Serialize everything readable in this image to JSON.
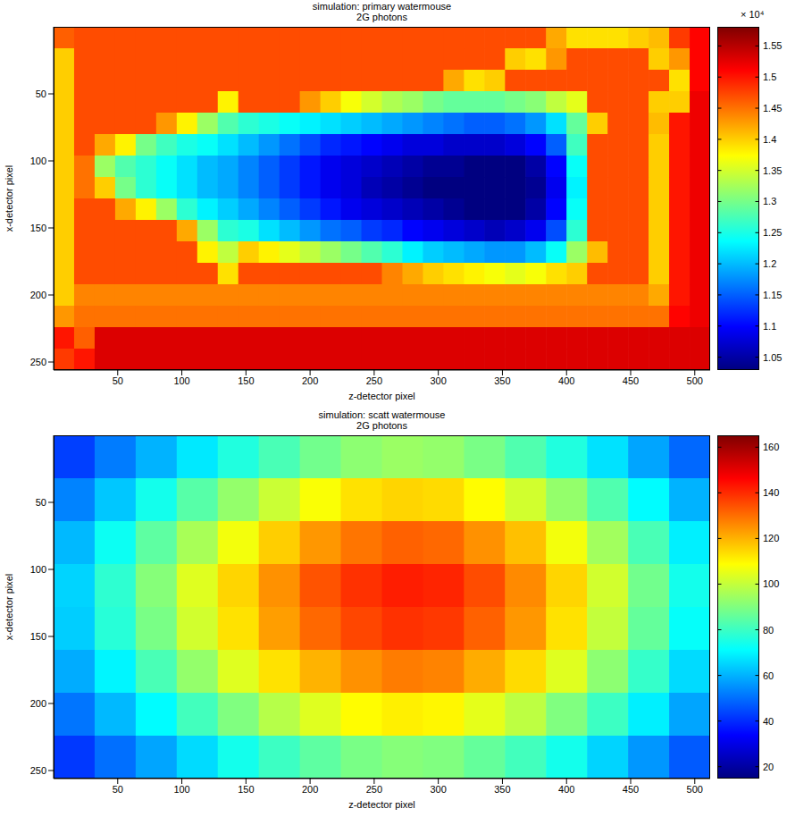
{
  "chart_data": [
    {
      "type": "heatmap",
      "title": "simulation: primary watermouse",
      "subtitle": "2G photons",
      "x_label": "z-detector pixel",
      "y_label": "x-detector pixel",
      "xlim": [
        0,
        512
      ],
      "xticks": [
        50,
        100,
        150,
        200,
        250,
        300,
        350,
        400,
        450,
        500
      ],
      "ylim": [
        0,
        256
      ],
      "yticks": [
        50,
        100,
        150,
        200,
        250
      ],
      "x": [
        8,
        24,
        40,
        56,
        72,
        88,
        104,
        120,
        136,
        152,
        168,
        184,
        200,
        216,
        232,
        248,
        264,
        280,
        296,
        312,
        328,
        344,
        360,
        376,
        392,
        408,
        424,
        440,
        456,
        472,
        488,
        504
      ],
      "y": [
        8,
        24,
        40,
        56,
        72,
        88,
        104,
        120,
        136,
        152,
        168,
        184,
        200,
        216,
        232,
        248
      ],
      "cells": [
        [
          14600,
          14700,
          14700,
          14700,
          14700,
          14700,
          14700,
          14700,
          14700,
          14700,
          14700,
          14700,
          14700,
          14700,
          14700,
          14700,
          14700,
          14700,
          14700,
          14700,
          14700,
          14700,
          14700,
          14700,
          14200,
          13900,
          13900,
          13900,
          14000,
          14100,
          14800,
          15100
        ],
        [
          14000,
          14700,
          14700,
          14700,
          14700,
          14700,
          14700,
          14700,
          14700,
          14700,
          14700,
          14700,
          14700,
          14700,
          14700,
          14700,
          14700,
          14700,
          14700,
          14700,
          14700,
          14700,
          14000,
          13900,
          14300,
          14700,
          14700,
          14700,
          14700,
          14000,
          14300,
          15100
        ],
        [
          14000,
          14700,
          14700,
          14700,
          14700,
          14700,
          14700,
          14700,
          14700,
          14700,
          14700,
          14700,
          14700,
          14700,
          14700,
          14700,
          14700,
          14700,
          14700,
          14200,
          13900,
          14000,
          14700,
          14700,
          14700,
          14700,
          14700,
          14700,
          14700,
          14700,
          13900,
          15100
        ],
        [
          14000,
          14700,
          14700,
          14700,
          14700,
          14700,
          14700,
          14700,
          13800,
          14700,
          14700,
          14700,
          14300,
          14000,
          13700,
          13500,
          13300,
          13200,
          13000,
          12900,
          12900,
          12900,
          13000,
          13100,
          13400,
          13600,
          14700,
          14700,
          14700,
          14000,
          14000,
          15200
        ],
        [
          14000,
          14700,
          14700,
          14700,
          14700,
          14300,
          13800,
          13200,
          12800,
          12600,
          12500,
          12400,
          12300,
          12200,
          12100,
          12000,
          11900,
          11800,
          11700,
          11600,
          11500,
          11500,
          11600,
          11800,
          12200,
          12900,
          14000,
          14700,
          14700,
          14100,
          15000,
          15200
        ],
        [
          14000,
          14700,
          14200,
          13800,
          13000,
          12700,
          12500,
          12400,
          12200,
          12000,
          11800,
          11600,
          11400,
          11200,
          11100,
          11000,
          10900,
          10800,
          10800,
          10700,
          10700,
          10700,
          10800,
          11000,
          11500,
          12700,
          14700,
          14700,
          14700,
          14000,
          15000,
          15200
        ],
        [
          14000,
          14500,
          13200,
          12800,
          12600,
          12400,
          12200,
          12000,
          11900,
          11700,
          11500,
          11300,
          11100,
          10900,
          10800,
          10700,
          10600,
          10500,
          10400,
          10400,
          10300,
          10300,
          10300,
          10500,
          11000,
          12400,
          14700,
          14700,
          14700,
          14000,
          15000,
          15200
        ],
        [
          14000,
          14500,
          14000,
          13000,
          12600,
          12400,
          12200,
          12000,
          11900,
          11700,
          11500,
          11300,
          11100,
          10900,
          10800,
          10600,
          10500,
          10400,
          10300,
          10300,
          10300,
          10300,
          10300,
          10400,
          10900,
          12300,
          14700,
          14700,
          14700,
          14000,
          15000,
          15200
        ],
        [
          14000,
          14700,
          14700,
          14200,
          13800,
          13200,
          12600,
          12300,
          12100,
          11900,
          11700,
          11500,
          11300,
          11100,
          10900,
          10800,
          10700,
          10600,
          10500,
          10400,
          10300,
          10300,
          10300,
          10500,
          11000,
          12400,
          14700,
          14700,
          14700,
          14000,
          15000,
          15200
        ],
        [
          14000,
          14700,
          14700,
          14700,
          14700,
          14700,
          14200,
          13200,
          12600,
          12500,
          12200,
          12000,
          11800,
          11600,
          11500,
          11300,
          11200,
          11000,
          10900,
          10800,
          10700,
          10600,
          10700,
          10900,
          11400,
          12600,
          14700,
          14700,
          14700,
          14000,
          15000,
          15200
        ],
        [
          14000,
          14700,
          14700,
          14700,
          14700,
          14700,
          14700,
          13800,
          13400,
          14000,
          13800,
          13600,
          13400,
          13200,
          13000,
          12800,
          12600,
          12300,
          12100,
          12000,
          11900,
          11800,
          11800,
          12000,
          12400,
          13200,
          14100,
          14700,
          14700,
          14000,
          15000,
          15200
        ],
        [
          14000,
          14700,
          14700,
          14700,
          14700,
          14700,
          14700,
          14700,
          13900,
          14700,
          14700,
          14700,
          14700,
          14700,
          14700,
          14700,
          14400,
          14200,
          14000,
          13900,
          13800,
          13700,
          13600,
          13700,
          13900,
          14000,
          14700,
          14700,
          14700,
          14000,
          15000,
          15200
        ],
        [
          14000,
          14400,
          14400,
          14400,
          14400,
          14400,
          14400,
          14400,
          14400,
          14400,
          14400,
          14400,
          14400,
          14400,
          14400,
          14400,
          14400,
          14400,
          14400,
          14400,
          14400,
          14400,
          14400,
          14400,
          14400,
          14400,
          14400,
          14400,
          14400,
          14200,
          15000,
          15200
        ],
        [
          14300,
          14500,
          14500,
          14500,
          14500,
          14500,
          14500,
          14500,
          14500,
          14500,
          14500,
          14500,
          14500,
          14500,
          14500,
          14500,
          14500,
          14500,
          14500,
          14500,
          14500,
          14500,
          14500,
          14500,
          14500,
          14500,
          14500,
          14500,
          14500,
          14500,
          15100,
          15200
        ],
        [
          15000,
          14600,
          15300,
          15300,
          15300,
          15300,
          15300,
          15300,
          15300,
          15300,
          15300,
          15300,
          15300,
          15300,
          15300,
          15300,
          15300,
          15300,
          15300,
          15300,
          15300,
          15300,
          15300,
          15300,
          15300,
          15300,
          15300,
          15300,
          15300,
          15300,
          15300,
          15300
        ],
        [
          14800,
          15000,
          15300,
          15300,
          15300,
          15300,
          15300,
          15300,
          15300,
          15300,
          15300,
          15300,
          15300,
          15300,
          15300,
          15300,
          15300,
          15300,
          15300,
          15300,
          15300,
          15300,
          15300,
          15300,
          15300,
          15300,
          15300,
          15300,
          15300,
          15300,
          15300,
          15300
        ]
      ],
      "colorbar_lim": [
        10300,
        15800
      ],
      "colorbar_ticks": [
        {
          "value": 10500,
          "label": "1.05"
        },
        {
          "value": 11000,
          "label": "1.1"
        },
        {
          "value": 11500,
          "label": "1.15"
        },
        {
          "value": 12000,
          "label": "1.2"
        },
        {
          "value": 12500,
          "label": "1.25"
        },
        {
          "value": 13000,
          "label": "1.3"
        },
        {
          "value": 13500,
          "label": "1.35"
        },
        {
          "value": 14000,
          "label": "1.4"
        },
        {
          "value": 14500,
          "label": "1.45"
        },
        {
          "value": 15000,
          "label": "1.5"
        },
        {
          "value": 15500,
          "label": "1.55"
        }
      ],
      "colorbar_label": "× 10⁴"
    },
    {
      "type": "heatmap",
      "title": "simulation: scatt watermouse",
      "subtitle": "2G photons",
      "x_label": "z-detector pixel",
      "y_label": "x-detector pixel",
      "xlim": [
        0,
        512
      ],
      "xticks": [
        50,
        100,
        150,
        200,
        250,
        300,
        350,
        400,
        450,
        500
      ],
      "ylim": [
        0,
        256
      ],
      "yticks": [
        50,
        100,
        150,
        200,
        250
      ],
      "x": [
        16,
        48,
        80,
        112,
        144,
        176,
        208,
        240,
        272,
        304,
        336,
        368,
        400,
        432,
        464,
        496
      ],
      "y": [
        16,
        48,
        80,
        112,
        144,
        176,
        208,
        240
      ],
      "cells": [
        [
          43,
          52,
          60,
          68,
          76,
          82,
          88,
          92,
          94,
          93,
          89,
          83,
          76,
          67,
          58,
          49
        ],
        [
          53,
          63,
          74,
          84,
          93,
          101,
          108,
          113,
          115,
          114,
          109,
          102,
          93,
          83,
          71,
          60
        ],
        [
          61,
          73,
          85,
          96,
          107,
          116,
          124,
          129,
          132,
          131,
          125,
          118,
          107,
          95,
          82,
          69
        ],
        [
          65,
          78,
          91,
          104,
          115,
          125,
          134,
          139,
          142,
          141,
          135,
          126,
          115,
          102,
          88,
          74
        ],
        [
          64,
          77,
          89,
          102,
          113,
          123,
          131,
          136,
          139,
          138,
          132,
          124,
          113,
          100,
          86,
          72
        ],
        [
          59,
          70,
          82,
          93,
          104,
          113,
          120,
          125,
          128,
          127,
          121,
          114,
          104,
          92,
          79,
          66
        ],
        [
          51,
          61,
          71,
          81,
          90,
          98,
          104,
          109,
          111,
          110,
          105,
          99,
          90,
          80,
          69,
          58
        ],
        [
          42,
          50,
          58,
          66,
          74,
          80,
          85,
          89,
          91,
          90,
          86,
          81,
          74,
          65,
          56,
          47
        ]
      ],
      "colorbar_lim": [
        15,
        165
      ],
      "colorbar_ticks": [
        20,
        40,
        60,
        80,
        100,
        120,
        140,
        160
      ]
    }
  ]
}
